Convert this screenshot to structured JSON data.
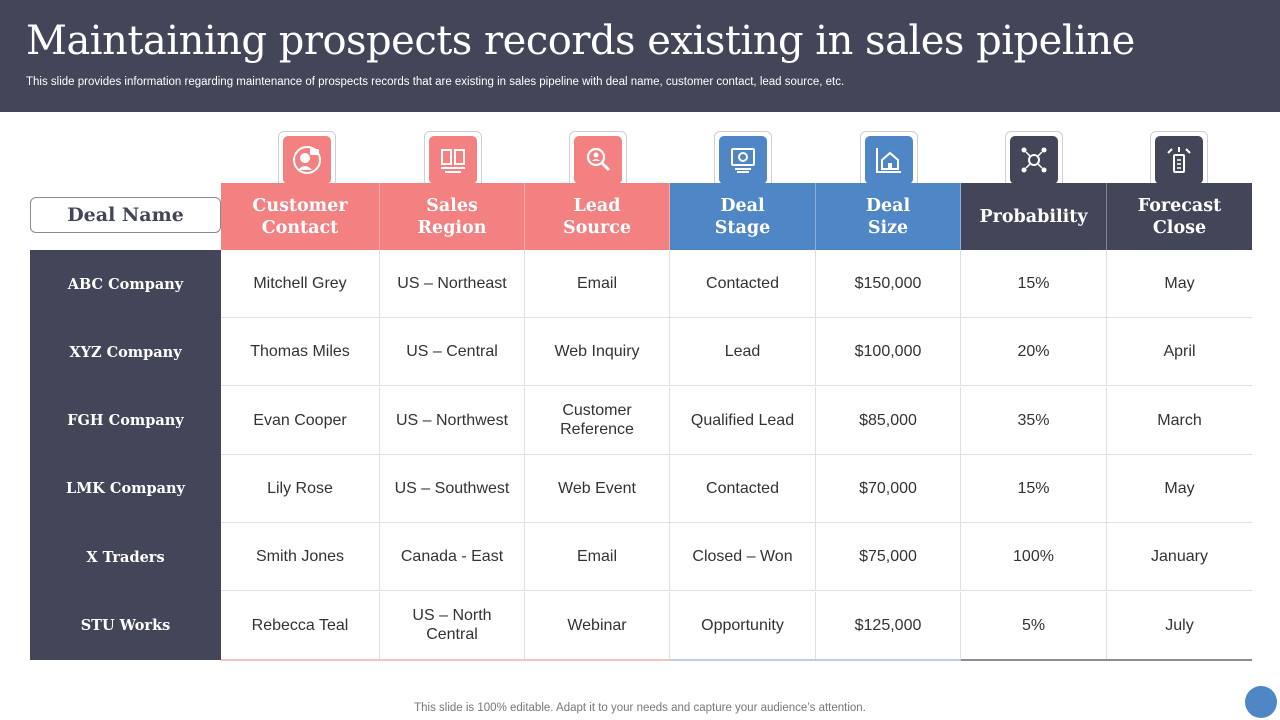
{
  "slide": {
    "title": "Maintaining prospects records existing in sales pipeline",
    "subtitle": "This slide provides information regarding maintenance of prospects records that are existing in sales pipeline with deal name, customer contact, lead source, etc.",
    "footer": "This slide is 100% editable. Adapt it to your needs and capture your audience’s attention."
  },
  "table": {
    "row_header": "Deal Name",
    "columns": [
      {
        "line1": "Customer",
        "line2": "Contact",
        "icon": "customer-contact-icon",
        "color": "#f38182"
      },
      {
        "line1": "Sales",
        "line2": "Region",
        "icon": "sales-region-icon",
        "color": "#f38182"
      },
      {
        "line1": "Lead",
        "line2": "Source",
        "icon": "lead-source-icon",
        "color": "#f38182"
      },
      {
        "line1": "Deal",
        "line2": "Stage",
        "icon": "deal-stage-icon",
        "color": "#4f86c6"
      },
      {
        "line1": "Deal",
        "line2": "Size",
        "icon": "deal-size-icon",
        "color": "#4f86c6"
      },
      {
        "line1": "Probability",
        "line2": "",
        "icon": "probability-icon",
        "color": "#434658"
      },
      {
        "line1": "Forecast",
        "line2": "Close",
        "icon": "forecast-close-icon",
        "color": "#434658"
      }
    ],
    "rows": [
      {
        "name": "ABC Company",
        "cells": [
          [
            "Mitchell Grey"
          ],
          [
            "US – Northeast"
          ],
          [
            "Email"
          ],
          [
            "Contacted"
          ],
          [
            "$150,000"
          ],
          [
            "15%"
          ],
          [
            "May"
          ]
        ]
      },
      {
        "name": "XYZ Company",
        "cells": [
          [
            "Thomas Miles"
          ],
          [
            "US – Central"
          ],
          [
            "Web Inquiry"
          ],
          [
            "Lead"
          ],
          [
            "$100,000"
          ],
          [
            "20%"
          ],
          [
            "April"
          ]
        ]
      },
      {
        "name": "FGH Company",
        "cells": [
          [
            "Evan Cooper"
          ],
          [
            "US – Northwest"
          ],
          [
            "Customer",
            "Reference"
          ],
          [
            "Qualified Lead"
          ],
          [
            "$85,000"
          ],
          [
            "35%"
          ],
          [
            "March"
          ]
        ]
      },
      {
        "name": "LMK Company",
        "cells": [
          [
            "Lily Rose"
          ],
          [
            "US – Southwest"
          ],
          [
            "Web Event"
          ],
          [
            "Contacted"
          ],
          [
            "$70,000"
          ],
          [
            "15%"
          ],
          [
            "May"
          ]
        ]
      },
      {
        "name": "X Traders",
        "cells": [
          [
            "Smith Jones"
          ],
          [
            "Canada - East"
          ],
          [
            "Email"
          ],
          [
            "Closed – Won"
          ],
          [
            "$75,000"
          ],
          [
            "100%"
          ],
          [
            "January"
          ]
        ]
      },
      {
        "name": "STU Works",
        "cells": [
          [
            "Rebecca Teal"
          ],
          [
            "US – North",
            "Central"
          ],
          [
            "Webinar"
          ],
          [
            "Opportunity"
          ],
          [
            "$125,000"
          ],
          [
            "5%"
          ],
          [
            "July"
          ]
        ]
      }
    ]
  }
}
